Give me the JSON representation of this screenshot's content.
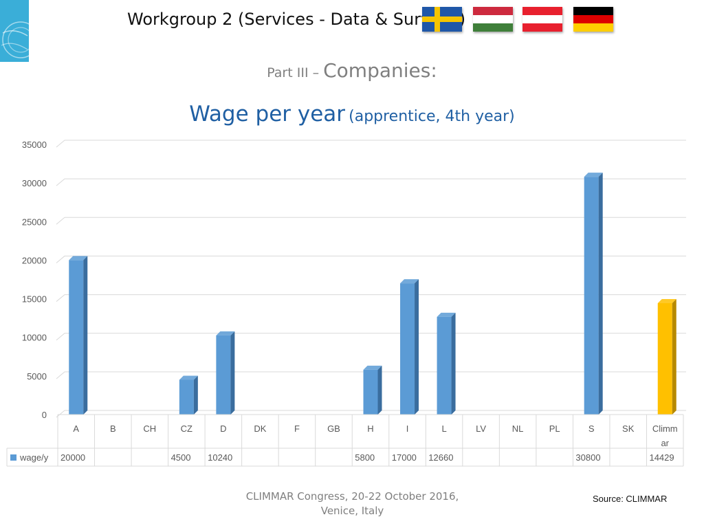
{
  "header": {
    "title": "Workgroup 2 (Services - Data & Surveys)"
  },
  "flags": [
    {
      "name": "sweden-flag",
      "colors": [
        "#1f57a8",
        "#f5c400"
      ]
    },
    {
      "name": "hungary-flag",
      "colors": [
        "#cd2a3e",
        "#ffffff",
        "#3f7f3a"
      ]
    },
    {
      "name": "austria-flag",
      "colors": [
        "#e8202e",
        "#ffffff",
        "#e8202e"
      ]
    },
    {
      "name": "germany-flag",
      "colors": [
        "#000000",
        "#dd0000",
        "#ffce00"
      ]
    }
  ],
  "subtitle": {
    "prefix": "Part III – ",
    "main": "Companies:"
  },
  "chart_data": {
    "type": "bar",
    "title_main": "Wage per year",
    "title_sub": "(apprentice, 4th year)",
    "categories": [
      "A",
      "B",
      "CH",
      "CZ",
      "D",
      "DK",
      "F",
      "GB",
      "H",
      "I",
      "L",
      "LV",
      "NL",
      "PL",
      "S",
      "SK",
      "Climmar"
    ],
    "category_label_lines": [
      [
        "A"
      ],
      [
        "B"
      ],
      [
        "CH"
      ],
      [
        "CZ"
      ],
      [
        "D"
      ],
      [
        "DK"
      ],
      [
        "F"
      ],
      [
        "GB"
      ],
      [
        "H"
      ],
      [
        "I"
      ],
      [
        "L"
      ],
      [
        "LV"
      ],
      [
        "NL"
      ],
      [
        "PL"
      ],
      [
        "S"
      ],
      [
        "SK"
      ],
      [
        "Climm",
        "ar"
      ]
    ],
    "series": [
      {
        "name": "wage/y",
        "values": [
          20000,
          null,
          null,
          4500,
          10240,
          null,
          null,
          null,
          5800,
          17000,
          12660,
          null,
          null,
          null,
          30800,
          null,
          14429
        ]
      }
    ],
    "ylim": [
      0,
      35000
    ],
    "yticks": [
      0,
      5000,
      10000,
      15000,
      20000,
      25000,
      30000,
      35000
    ],
    "grid": true,
    "legend": "data-table",
    "colors": {
      "default": "#5b9bd5",
      "default_dark": "#3a6d9e",
      "highlight": "#ffc000",
      "highlight_dark": "#b78900"
    },
    "highlight_category": "Climmar"
  },
  "footer": {
    "line1": "CLIMMAR Congress, 20-22 October 2016,",
    "line2": "Venice, Italy"
  },
  "source": "Source: CLIMMAR"
}
